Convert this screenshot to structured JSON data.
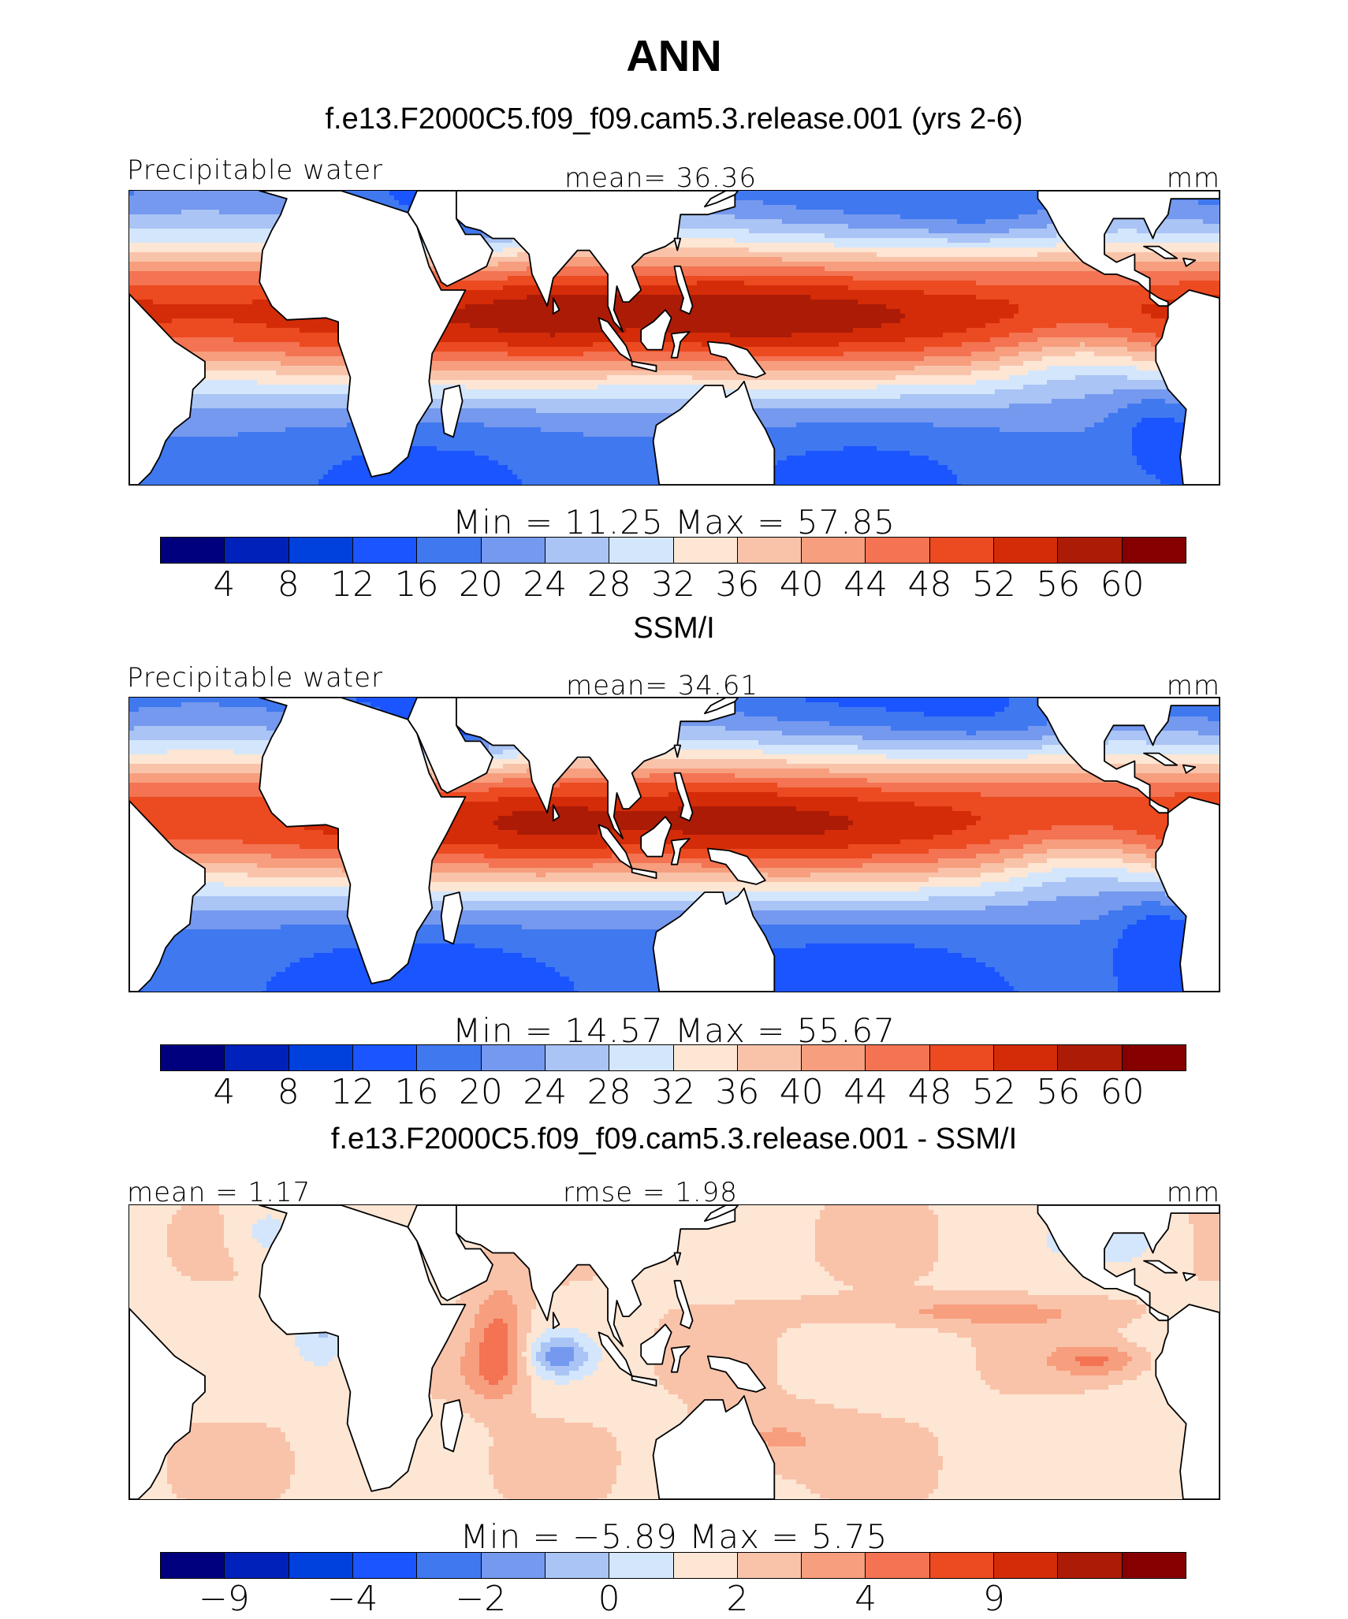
{
  "title": "ANN",
  "colors": [
    "#00007f",
    "#0022bb",
    "#0040dd",
    "#1a55ff",
    "#4078f0",
    "#7599ee",
    "#aac4f5",
    "#d4e6fb",
    "#fde6d4",
    "#f9c3aa",
    "#f69e7d",
    "#f37352",
    "#ec4a20",
    "#d42c08",
    "#ac1b06",
    "#860000"
  ],
  "land_color": "#ffffff",
  "panels": [
    {
      "title": "f.e13.F2000C5.f09_f09.cam5.3.release.001 (yrs 2-6)",
      "left_label": "Precipitable water",
      "center_label": "mean=   36.36",
      "units": "mm",
      "minmax": "Min  =   11.25  Max  =   57.85",
      "ticks": [
        "4",
        "8",
        "12",
        "16",
        "20",
        "24",
        "28",
        "32",
        "36",
        "40",
        "44",
        "48",
        "52",
        "56",
        "60"
      ],
      "field": "model"
    },
    {
      "title": "SSM/I",
      "left_label": "Precipitable water",
      "center_label": "mean=   34.61",
      "units": "mm",
      "minmax": "Min  =   14.57  Max  =   55.67",
      "ticks": [
        "4",
        "8",
        "12",
        "16",
        "20",
        "24",
        "28",
        "32",
        "36",
        "40",
        "44",
        "48",
        "52",
        "56",
        "60"
      ],
      "field": "obs"
    },
    {
      "title": "f.e13.F2000C5.f09_f09.cam5.3.release.001 - SSM/I",
      "left_label": "mean  =     1.17",
      "center_label": "rmse  =     1.98",
      "units": "mm",
      "minmax": "Min  =   −5.89  Max  =     5.75",
      "ticks": [
        "−9",
        "",
        "−4",
        "",
        "−2",
        "",
        "0",
        "",
        "2",
        "",
        "4",
        "",
        "9",
        "",
        ""
      ],
      "field": "diff"
    }
  ]
}
